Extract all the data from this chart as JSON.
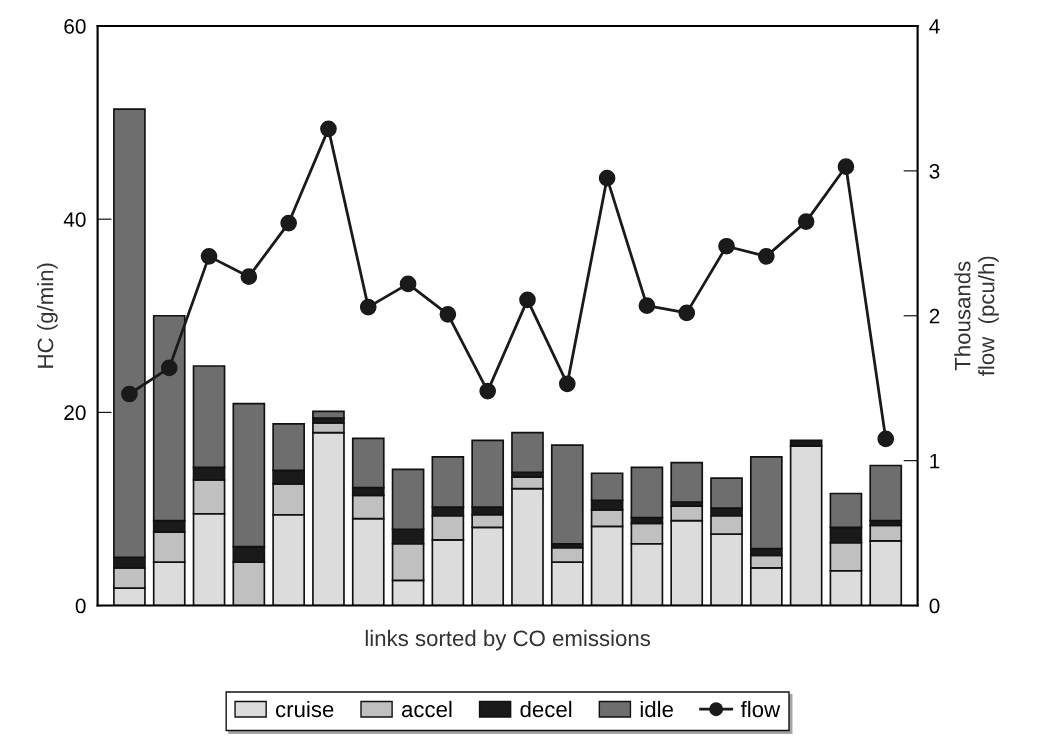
{
  "chart_data": {
    "type": "bar",
    "stacked": true,
    "xlabel": "links sorted by CO emissions",
    "ylabel": "HC (g/min)",
    "y2label": "Thousands\nflow  (pcu/h)",
    "categories": [
      null,
      null,
      null,
      null,
      null,
      null,
      null,
      null,
      null,
      null,
      null,
      null,
      null,
      null,
      null,
      null,
      null,
      null,
      null,
      null
    ],
    "ylim": [
      0,
      60
    ],
    "yticks": [
      0,
      20,
      40,
      60
    ],
    "y2lim": [
      0,
      4
    ],
    "y2ticks": [
      0,
      1,
      2,
      3,
      4
    ],
    "grid": false,
    "legend": "bottom",
    "series": [
      {
        "name": "cruise",
        "color": "#dcdcdc",
        "values": [
          1.8,
          4.5,
          9.5,
          null,
          9.4,
          17.9,
          9.0,
          2.6,
          6.8,
          8.1,
          12.1,
          4.5,
          8.2,
          6.4,
          8.8,
          7.4,
          3.9,
          16.5,
          3.6,
          6.7
        ]
      },
      {
        "name": "accel",
        "color": "#c0c0c0",
        "values": [
          2.1,
          3.1,
          3.5,
          4.5,
          3.2,
          1.0,
          2.4,
          3.8,
          2.5,
          1.3,
          1.2,
          1.5,
          1.7,
          2.1,
          1.5,
          1.9,
          1.3,
          0,
          2.9,
          1.6
        ]
      },
      {
        "name": "decel",
        "color": "#1a1a1a",
        "values": [
          1.1,
          1.2,
          1.3,
          1.6,
          1.4,
          0.5,
          0.8,
          1.5,
          0.9,
          0.8,
          0.5,
          0.4,
          1.0,
          0.6,
          0.4,
          0.8,
          0.7,
          0.6,
          1.6,
          0.5
        ]
      },
      {
        "name": "idle",
        "color": "#6e6e6e",
        "values": [
          46.4,
          21.2,
          10.5,
          14.8,
          4.8,
          0.7,
          5.1,
          6.2,
          5.2,
          6.9,
          4.1,
          10.2,
          2.8,
          5.2,
          4.1,
          3.1,
          9.5,
          0,
          3.5,
          5.7
        ]
      },
      {
        "name": "flow",
        "type": "line",
        "axis": "y2",
        "color": "#1a1a1a",
        "marker": "circle",
        "line_style": "solid",
        "values": [
          1.46,
          1.64,
          2.41,
          2.27,
          2.64,
          3.29,
          2.06,
          2.22,
          2.01,
          1.48,
          2.11,
          1.53,
          2.95,
          2.07,
          2.02,
          2.48,
          2.41,
          2.65,
          3.03,
          1.15
        ]
      }
    ]
  }
}
